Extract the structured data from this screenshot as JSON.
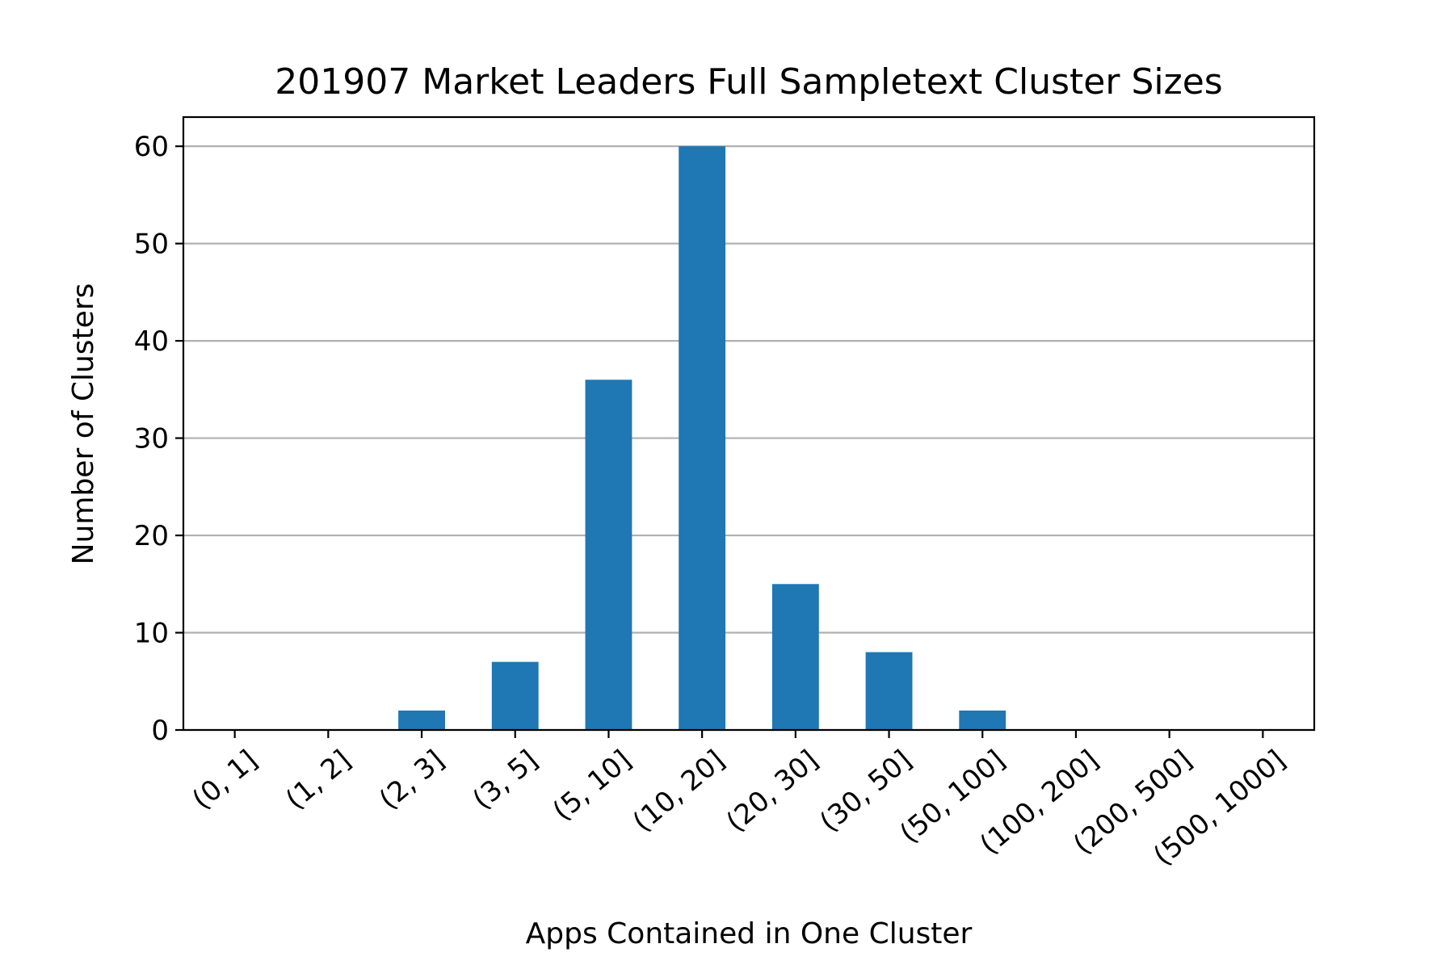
{
  "chart_data": {
    "type": "bar",
    "title": "201907 Market Leaders Full Sampletext Cluster Sizes",
    "xlabel": "Apps Contained in One Cluster",
    "ylabel": "Number of Clusters",
    "categories": [
      "(0, 1]",
      "(1, 2]",
      "(2, 3]",
      "(3, 5]",
      "(5, 10]",
      "(10, 20]",
      "(20, 30]",
      "(30, 50]",
      "(50, 100]",
      "(100, 200]",
      "(200, 500]",
      "(500, 1000]"
    ],
    "values": [
      0,
      0,
      2,
      7,
      36,
      60,
      15,
      8,
      2,
      0,
      0,
      0
    ],
    "ylim": [
      0,
      63
    ],
    "yticks": [
      "0",
      "10",
      "20",
      "30",
      "40",
      "50",
      "60"
    ],
    "grid": "horizontal",
    "legend": "none",
    "bar_color": "#1f77b4",
    "grid_color": "#b0b0b0"
  }
}
